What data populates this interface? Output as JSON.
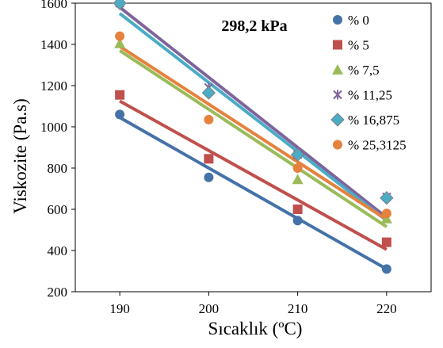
{
  "chart_data": {
    "type": "scatter",
    "title": "298,2 kPa",
    "xlabel": "Sıcaklık (ºC)",
    "ylabel": "Viskozite (Pa.s)",
    "xlim": [
      185,
      225
    ],
    "ylim": [
      200,
      1600
    ],
    "xticks": [
      190,
      200,
      210,
      220
    ],
    "xtick_labels": [
      "190",
      "200",
      "210",
      "220"
    ],
    "yticks": [
      200,
      400,
      600,
      800,
      1000,
      1200,
      1400,
      1600
    ],
    "ytick_labels": [
      "200",
      "400",
      "600",
      "800",
      "1000",
      "1200",
      "1400",
      "1600"
    ],
    "grid": false,
    "legend_position": "top-right",
    "x": [
      190,
      200,
      210,
      220
    ],
    "series": [
      {
        "name": "% 0",
        "marker": "circle",
        "color": "#4472a8",
        "values": [
          1060,
          755,
          545,
          310
        ],
        "trendline": [
          1045,
          800,
          555,
          310
        ]
      },
      {
        "name": "% 5",
        "marker": "square",
        "color": "#c0504d",
        "values": [
          1155,
          845,
          600,
          440
        ],
        "trendline": [
          1125,
          885,
          645,
          405
        ]
      },
      {
        "name": "% 7,5",
        "marker": "triangle",
        "color": "#9bbb59",
        "values": [
          1405,
          1180,
          745,
          555
        ],
        "trendline": [
          1370,
          1085,
          800,
          515
        ]
      },
      {
        "name": "% 11,25",
        "marker": "x",
        "color": "#7f649c",
        "values": [
          1600,
          1190,
          865,
          660
        ],
        "trendline": [
          1580,
          1240,
          900,
          560
        ]
      },
      {
        "name": "% 16,875",
        "marker": "diamond",
        "color": "#4bacc6",
        "values": [
          1600,
          1165,
          865,
          655
        ],
        "trendline": [
          1550,
          1215,
          880,
          545
        ]
      },
      {
        "name": "% 25,3125",
        "marker": "circle",
        "color": "#e4823e",
        "values": [
          1440,
          1035,
          800,
          580
        ],
        "trendline": [
          1390,
          1110,
          830,
          550
        ]
      }
    ]
  }
}
